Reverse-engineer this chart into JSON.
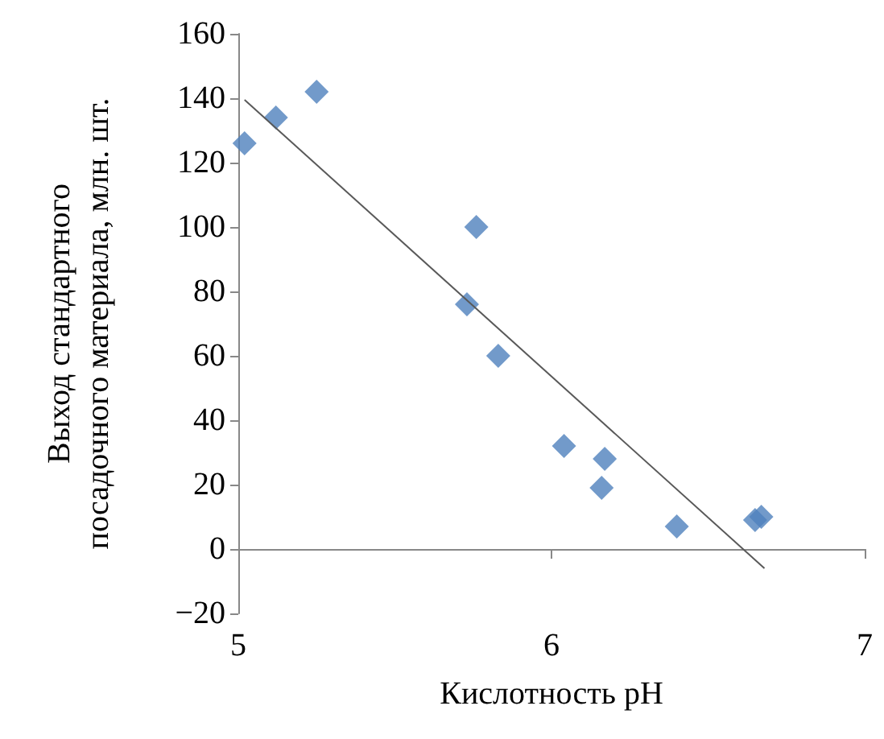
{
  "chart_data": {
    "type": "scatter",
    "xlabel": "Кислотность pH",
    "ylabel": "Выход стандартного\nпосадочного материала, млн. шт.",
    "xlim": [
      5,
      7
    ],
    "xticks": [
      5,
      6,
      7
    ],
    "ylim": [
      -20,
      160
    ],
    "yticks": [
      -20,
      0,
      20,
      40,
      60,
      80,
      100,
      120,
      140,
      160
    ],
    "grid": false,
    "marker": "diamond",
    "series": [
      {
        "color": "#4f81bd",
        "x": [
          5.02,
          5.12,
          5.25,
          5.76,
          5.73,
          5.83,
          6.04,
          6.17,
          6.16,
          6.4,
          6.65,
          6.67
        ],
        "values": [
          126,
          134,
          142,
          100,
          76,
          60,
          32,
          28,
          19,
          7,
          9,
          10
        ]
      },
      {
        "type": "line",
        "color": "#595959",
        "marker": "none",
        "x": [
          5.02,
          6.68
        ],
        "values": [
          139.5,
          -6
        ]
      }
    ]
  }
}
